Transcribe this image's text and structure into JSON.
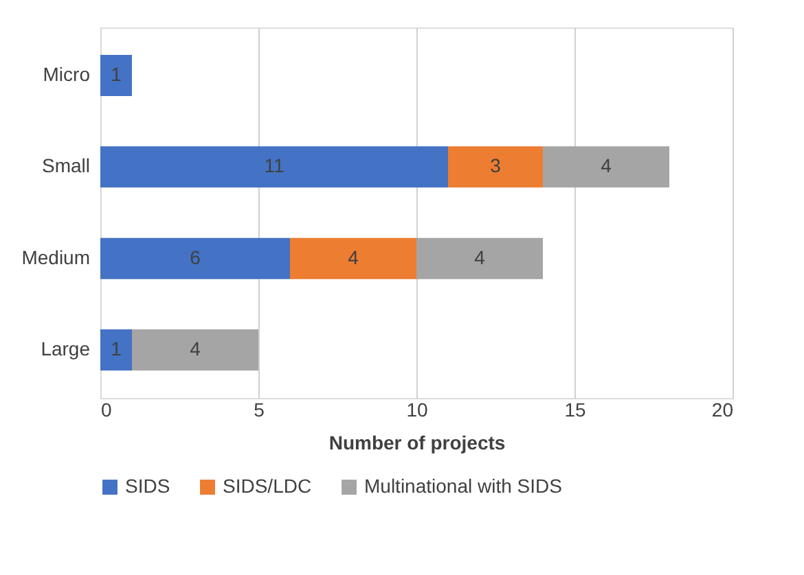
{
  "chart_data": {
    "type": "bar",
    "orientation": "horizontal",
    "stacked": true,
    "xlabel": "Number of projects",
    "categories": [
      "Micro",
      "Small",
      "Medium",
      "Large"
    ],
    "series": [
      {
        "name": "SIDS",
        "color": "#4472c4",
        "values": [
          1,
          11,
          6,
          1
        ]
      },
      {
        "name": "SIDS/LDC",
        "color": "#ed7d31",
        "values": [
          null,
          3,
          4,
          null
        ]
      },
      {
        "name": "Multinational with SIDS",
        "color": "#a5a5a5",
        "values": [
          null,
          4,
          4,
          4
        ]
      }
    ],
    "xlim": [
      0,
      20
    ],
    "xticks": [
      0,
      5,
      10,
      15,
      20
    ],
    "grid": "x",
    "legend": "bottom",
    "data_labels": true
  }
}
